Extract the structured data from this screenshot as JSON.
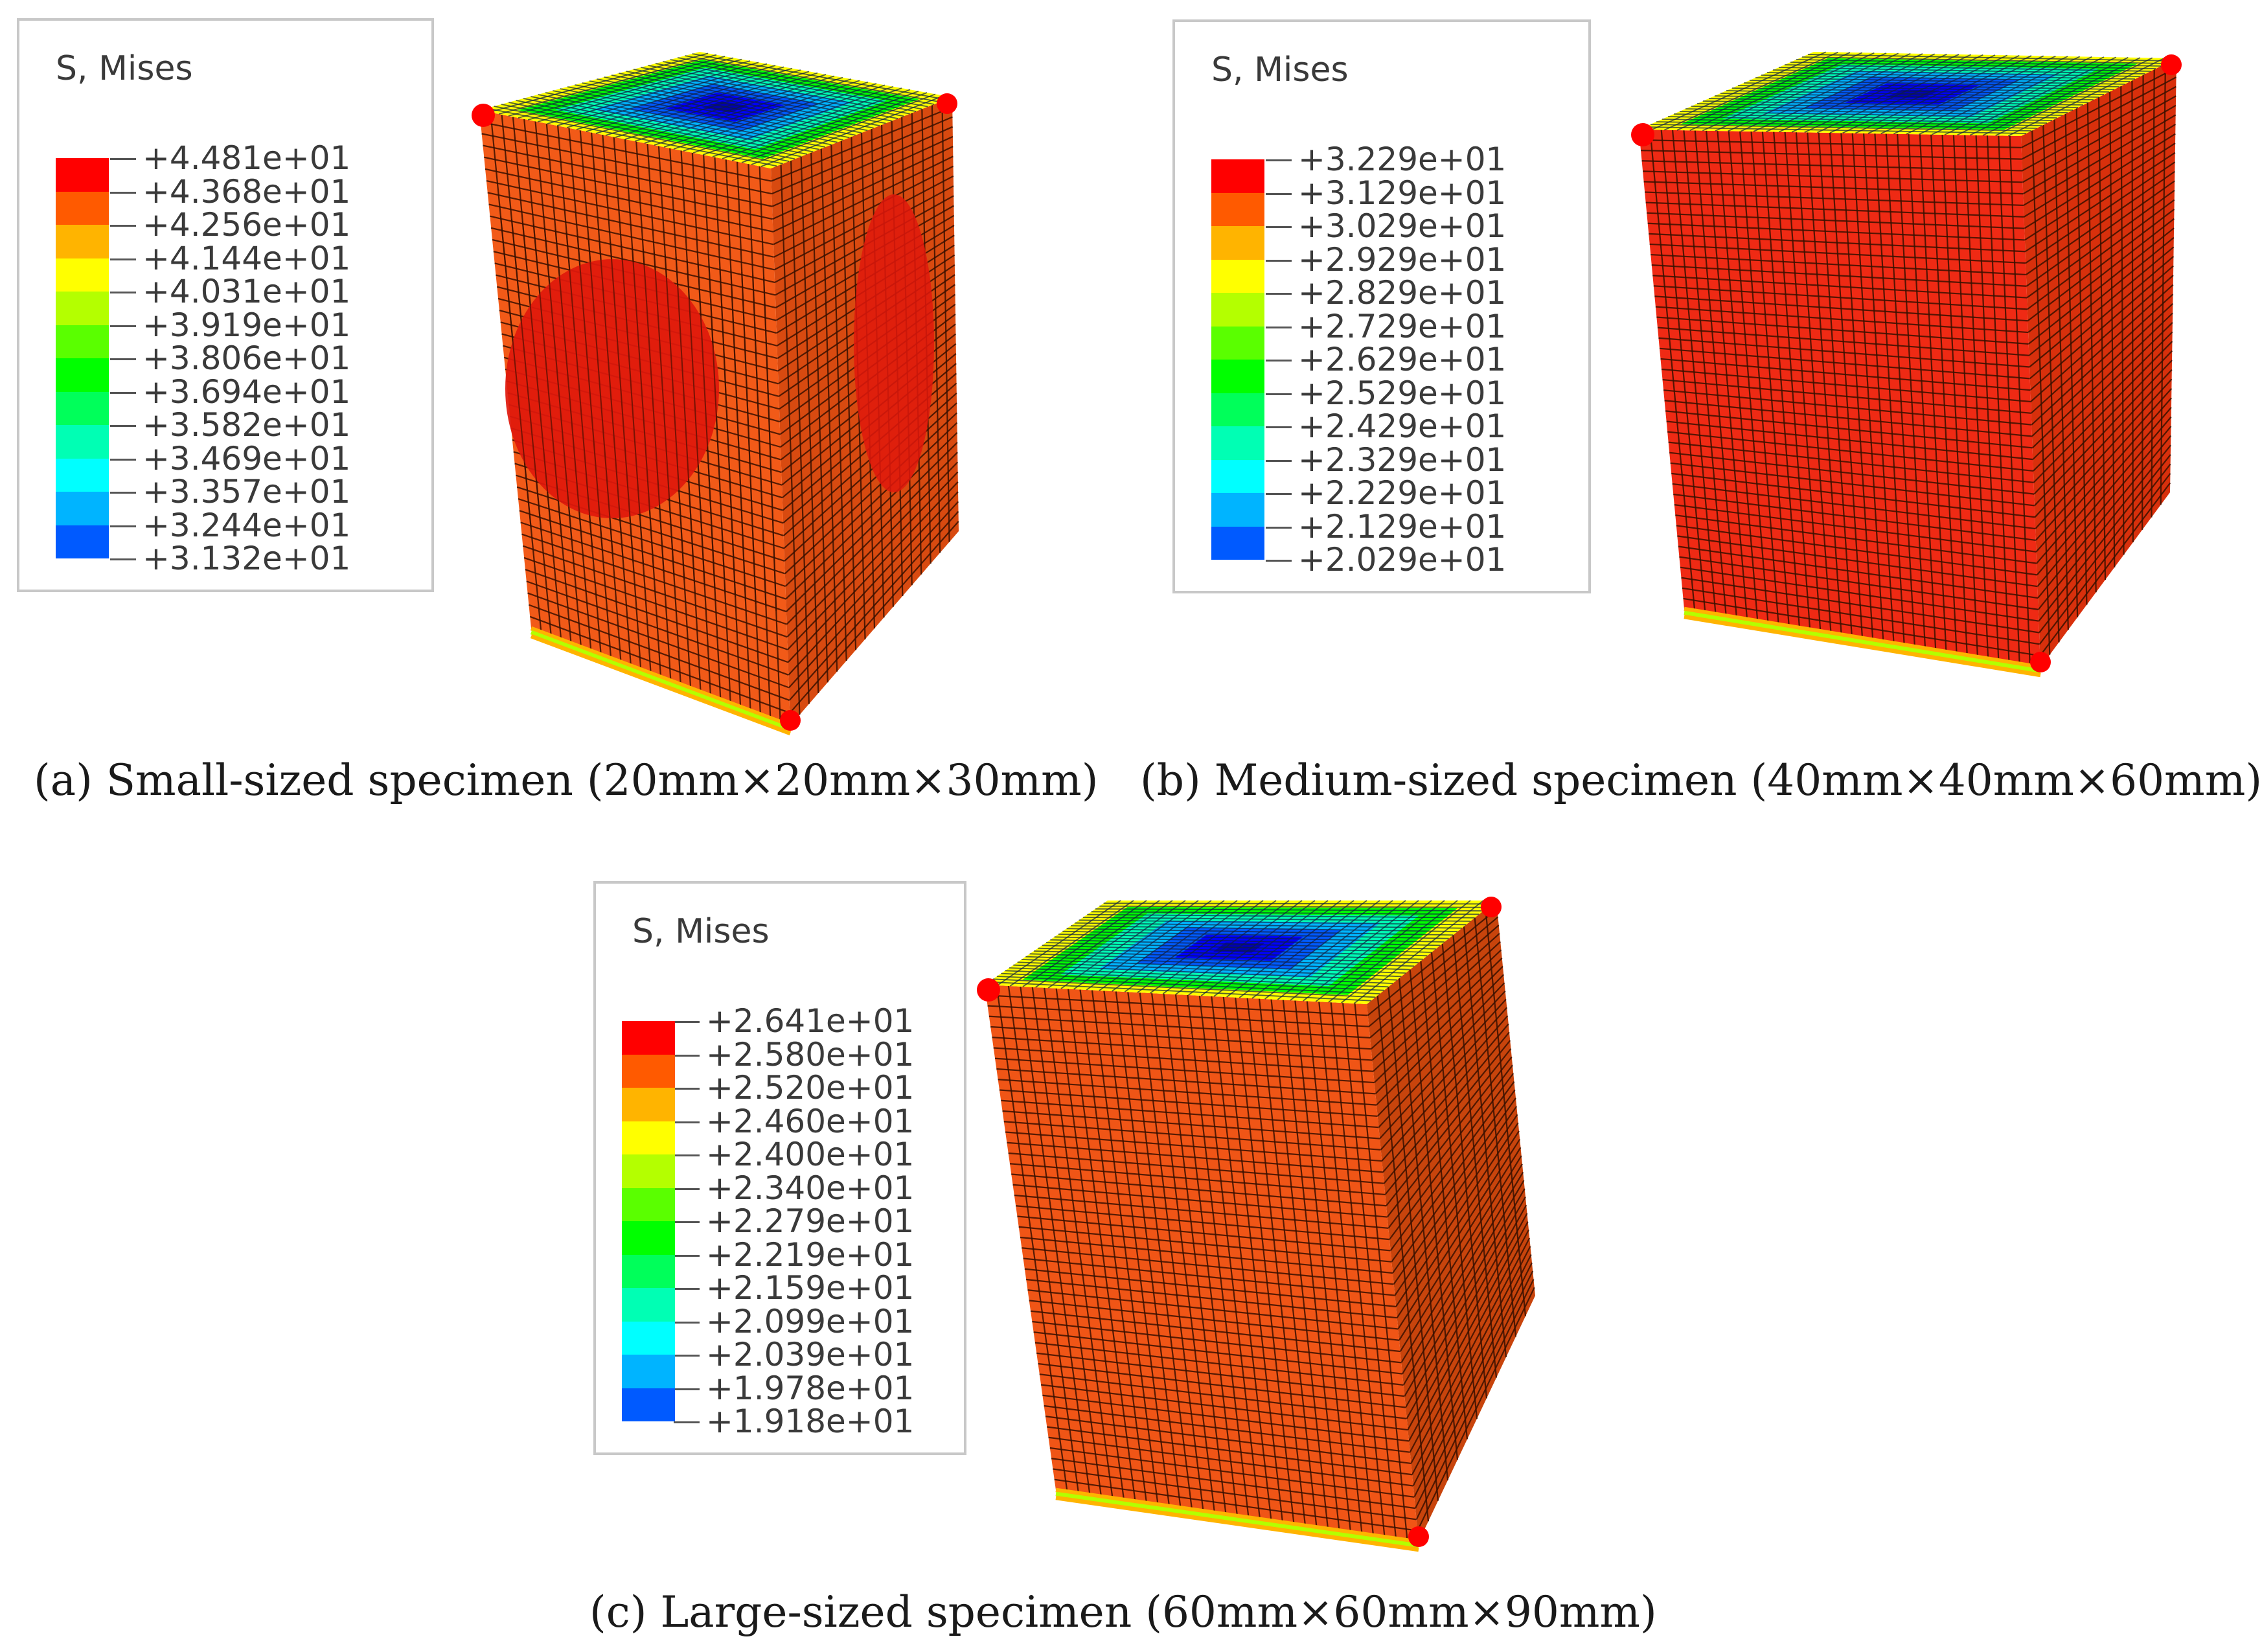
{
  "palette": [
    "#ff0000",
    "#ff5a00",
    "#ffb400",
    "#ffff00",
    "#b4ff00",
    "#5aff00",
    "#00ff00",
    "#00ff5a",
    "#00ffb4",
    "#00ffff",
    "#00b4ff",
    "#005aff",
    "#0000ff"
  ],
  "panels": [
    {
      "legend_title": "S, Mises",
      "legend_values": [
        "+4.481e+01",
        "+4.368e+01",
        "+4.256e+01",
        "+4.144e+01",
        "+4.031e+01",
        "+3.919e+01",
        "+3.806e+01",
        "+3.694e+01",
        "+3.582e+01",
        "+3.469e+01",
        "+3.357e+01",
        "+3.244e+01",
        "+3.132e+01"
      ],
      "caption": "(a) Small-sized specimen (20mm×20mm×30mm)"
    },
    {
      "legend_title": "S, Mises",
      "legend_values": [
        "+3.229e+01",
        "+3.129e+01",
        "+3.029e+01",
        "+2.929e+01",
        "+2.829e+01",
        "+2.729e+01",
        "+2.629e+01",
        "+2.529e+01",
        "+2.429e+01",
        "+2.329e+01",
        "+2.229e+01",
        "+2.129e+01",
        "+2.029e+01"
      ],
      "caption": "(b) Medium-sized specimen (40mm×40mm×60mm)"
    },
    {
      "legend_title": "S, Mises",
      "legend_values": [
        "+2.641e+01",
        "+2.580e+01",
        "+2.520e+01",
        "+2.460e+01",
        "+2.400e+01",
        "+2.340e+01",
        "+2.279e+01",
        "+2.219e+01",
        "+2.159e+01",
        "+2.099e+01",
        "+2.039e+01",
        "+1.978e+01",
        "+1.918e+01"
      ],
      "caption": "(c) Large-sized specimen (60mm×60mm×90mm)"
    }
  ]
}
